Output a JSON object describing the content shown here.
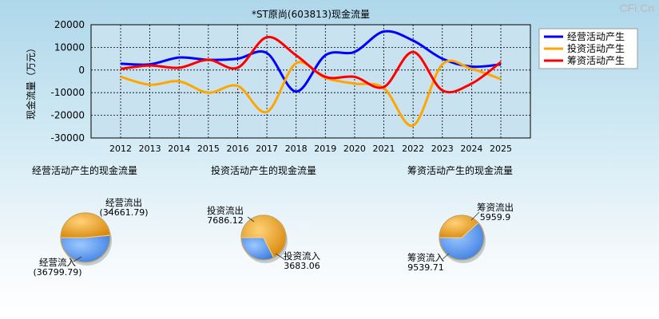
{
  "watermark": "CFi.Cn",
  "chart_data": [
    {
      "type": "line",
      "title": "*ST原尚(603813)现金流量",
      "xlabel": "",
      "ylabel": "现金流量（万元）",
      "ylim": [
        -30000,
        20000
      ],
      "yticks": [
        20000,
        10000,
        0,
        -10000,
        -20000,
        -30000
      ],
      "grid": true,
      "legend_position": "top-right",
      "x": [
        "2012",
        "2013",
        "2014",
        "2015",
        "2016",
        "2017",
        "2018",
        "2019",
        "2020",
        "2021",
        "2022",
        "2023",
        "2024",
        "2025"
      ],
      "series": [
        {
          "name": "经营活动产生",
          "color": "#0000ff",
          "values": [
            2800,
            2500,
            5500,
            4500,
            5000,
            7500,
            -9500,
            6500,
            8000,
            17000,
            13000,
            5000,
            1500,
            2500
          ]
        },
        {
          "name": "投资活动产生",
          "color": "#ffa500",
          "values": [
            -3000,
            -6500,
            -5000,
            -10000,
            -7000,
            -18500,
            3000,
            -3500,
            -6000,
            -8000,
            -24500,
            2500,
            500,
            -4000
          ]
        },
        {
          "name": "筹资活动产生",
          "color": "#ff0000",
          "values": [
            500,
            2000,
            1000,
            4500,
            1000,
            14500,
            6500,
            -3000,
            -3000,
            -7500,
            8000,
            -9000,
            -6000,
            3500
          ]
        }
      ]
    },
    {
      "type": "pie",
      "title": "经营活动产生的现金流量",
      "slices": [
        {
          "label": "经营流出",
          "value": 34661.79,
          "display": "(34661.79)",
          "color": "#f0a830"
        },
        {
          "label": "经营流入",
          "value": 36799.79,
          "display": "(36799.79)",
          "color": "#4f8ff0"
        }
      ]
    },
    {
      "type": "pie",
      "title": "投资活动产生的现金流量",
      "slices": [
        {
          "label": "投资流出",
          "value": 7686.12,
          "display": "7686.12",
          "color": "#f0a830"
        },
        {
          "label": "投资流入",
          "value": 3683.06,
          "display": "3683.06",
          "color": "#4f8ff0"
        }
      ]
    },
    {
      "type": "pie",
      "title": "筹资活动产生的现金流量",
      "slices": [
        {
          "label": "筹资流出",
          "value": 5959.9,
          "display": "5959.9",
          "color": "#f0a830"
        },
        {
          "label": "筹资流入",
          "value": 9539.71,
          "display": "9539.71",
          "color": "#4f8ff0"
        }
      ]
    }
  ]
}
